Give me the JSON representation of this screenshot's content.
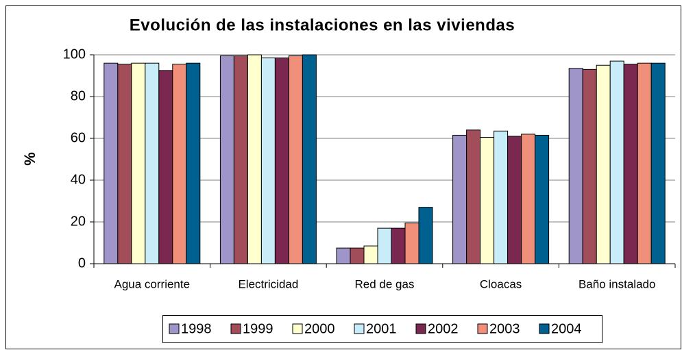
{
  "chart_data": {
    "type": "bar",
    "title": "Evolución de las instalaciones en las viviendas",
    "y_label": "%",
    "categories": [
      "Agua corriente",
      "Electricidad",
      "Red de gas",
      "Cloacas",
      "Baño instalado"
    ],
    "series": [
      {
        "name": "1998",
        "color": "#9f95c8",
        "values": [
          96,
          99.5,
          7.5,
          61.5,
          93.5
        ]
      },
      {
        "name": "1999",
        "color": "#a14d5a",
        "values": [
          95.5,
          99.5,
          7.5,
          64,
          93
        ]
      },
      {
        "name": "2000",
        "color": "#ffffd0",
        "values": [
          96,
          100,
          8.5,
          60.5,
          95
        ]
      },
      {
        "name": "2001",
        "color": "#c8ecf8",
        "values": [
          96,
          98.5,
          17,
          63.5,
          97
        ]
      },
      {
        "name": "2002",
        "color": "#7a2850",
        "values": [
          92.5,
          98.5,
          17,
          61,
          95.5
        ]
      },
      {
        "name": "2003",
        "color": "#f0907a",
        "values": [
          95.5,
          99.5,
          19.5,
          62,
          96
        ]
      },
      {
        "name": "2004",
        "color": "#00608f",
        "values": [
          96,
          100,
          27,
          61.5,
          96
        ]
      }
    ],
    "ylim": [
      0,
      100
    ],
    "yticks": [
      0,
      20,
      40,
      60,
      80,
      100
    ],
    "grid": true,
    "legend": "bottom"
  }
}
